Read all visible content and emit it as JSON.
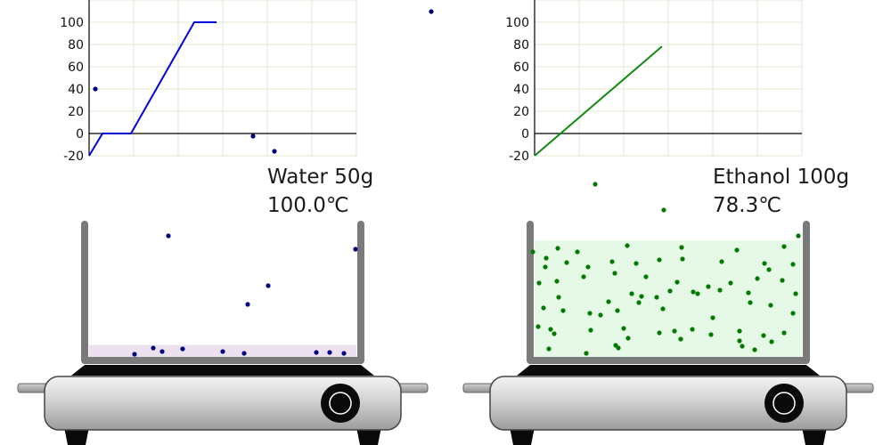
{
  "panels": [
    {
      "name": "Water 50g",
      "temperature": "100.0℃",
      "line_color": "#0000dd",
      "particle_color": "#000080",
      "liquid_color": "#ece2ef",
      "liquid_level": 0.09
    },
    {
      "name": "Ethanol 100g",
      "temperature": "78.3℃",
      "line_color": "#108a10",
      "particle_color": "#007a00",
      "liquid_color": "#e6f9e6",
      "liquid_level": 0.88
    }
  ],
  "chart_data": [
    {
      "type": "line",
      "yticks": [
        "100",
        "80",
        "60",
        "40",
        "20",
        "0",
        "-20"
      ],
      "ylim": [
        -20,
        120
      ],
      "xlim": [
        0,
        300
      ],
      "grid": true,
      "series": [
        {
          "x": [
            0,
            15,
            47,
            118,
            143
          ],
          "y": [
            -20,
            0,
            0,
            100,
            100
          ]
        }
      ]
    },
    {
      "type": "line",
      "yticks": [
        "100",
        "80",
        "60",
        "40",
        "20",
        "0",
        "-20"
      ],
      "ylim": [
        -20,
        120
      ],
      "xlim": [
        0,
        300
      ],
      "grid": true,
      "series": [
        {
          "x": [
            0,
            143
          ],
          "y": [
            -20,
            78.3
          ]
        }
      ]
    }
  ]
}
